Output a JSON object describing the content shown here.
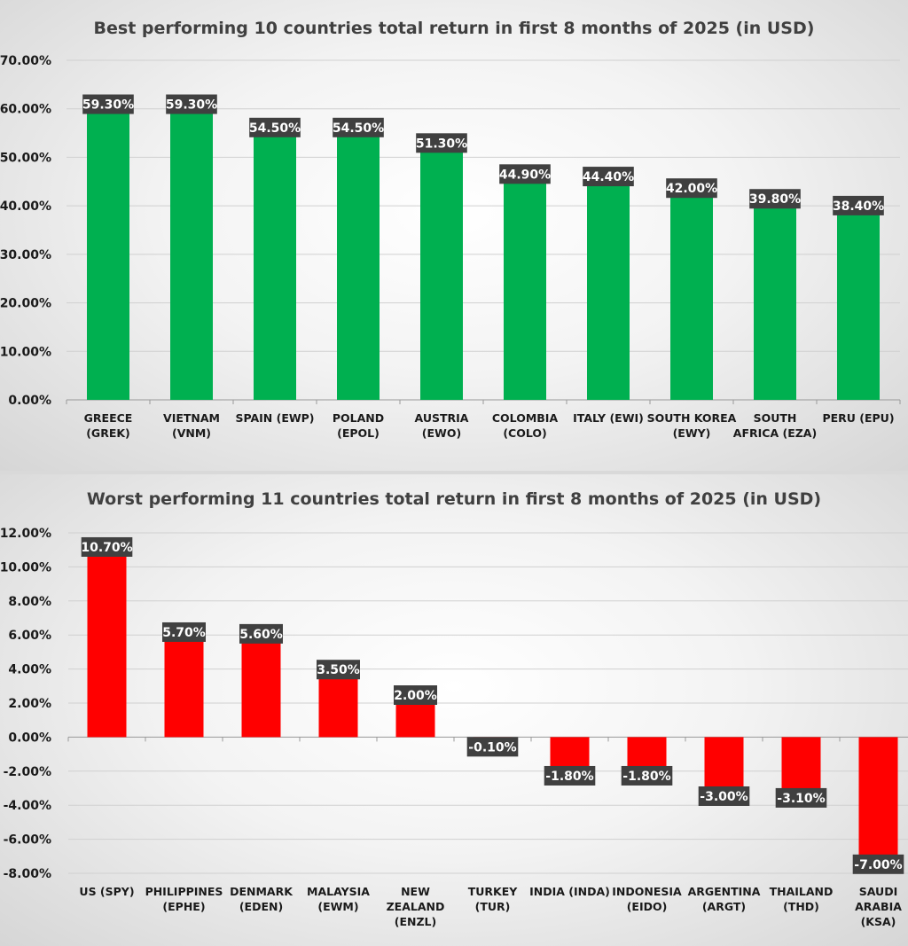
{
  "chart_data": [
    {
      "type": "bar",
      "title": "Best performing 10 countries total return in first 8 months of 2025 (in USD)",
      "xlabel": "",
      "ylabel": "",
      "categories": [
        [
          "GREECE",
          "(GREK)"
        ],
        [
          "VIETNAM",
          "(VNM)"
        ],
        [
          "SPAIN (EWP)"
        ],
        [
          "POLAND",
          "(EPOL)"
        ],
        [
          "AUSTRIA",
          "(EWO)"
        ],
        [
          "COLOMBIA",
          "(COLO)"
        ],
        [
          "ITALY (EWI)"
        ],
        [
          "SOUTH KOREA",
          "(EWY)"
        ],
        [
          "SOUTH",
          "AFRICA (EZA)"
        ],
        [
          "PERU (EPU)"
        ]
      ],
      "values": [
        59.3,
        59.3,
        54.5,
        54.5,
        51.3,
        44.9,
        44.4,
        42.0,
        39.8,
        38.4
      ],
      "data_labels": [
        "59.30%",
        "59.30%",
        "54.50%",
        "54.50%",
        "51.30%",
        "44.90%",
        "44.40%",
        "42.00%",
        "39.80%",
        "38.40%"
      ],
      "yticks": [
        "0.00%",
        "10.00%",
        "20.00%",
        "30.00%",
        "40.00%",
        "50.00%",
        "60.00%",
        "70.00%"
      ],
      "ylim": [
        0,
        70
      ],
      "unit": "%",
      "grid": true,
      "bar_color": "#00b050",
      "label_bg": "#404040"
    },
    {
      "type": "bar",
      "title": "Worst performing 11 countries total return in first 8 months of 2025 (in USD)",
      "xlabel": "",
      "ylabel": "",
      "categories": [
        [
          "US (SPY)"
        ],
        [
          "PHILIPPINES",
          "(EPHE)"
        ],
        [
          "DENMARK",
          "(EDEN)"
        ],
        [
          "MALAYSIA",
          "(EWM)"
        ],
        [
          "NEW",
          "ZEALAND",
          "(ENZL)"
        ],
        [
          "TURKEY",
          "(TUR)"
        ],
        [
          "INDIA (INDA)"
        ],
        [
          "INDONESIA",
          "(EIDO)"
        ],
        [
          "ARGENTINA",
          "(ARGT)"
        ],
        [
          "THAILAND",
          "(THD)"
        ],
        [
          "SAUDI",
          "ARABIA",
          "(KSA)"
        ]
      ],
      "values": [
        10.7,
        5.7,
        5.6,
        3.5,
        2.0,
        -0.1,
        -1.8,
        -1.8,
        -3.0,
        -3.1,
        -7.0
      ],
      "data_labels": [
        "10.70%",
        "5.70%",
        "5.60%",
        "3.50%",
        "2.00%",
        "-0.10%",
        "-1.80%",
        "-1.80%",
        "-3.00%",
        "-3.10%",
        "-7.00%"
      ],
      "yticks": [
        "-8.00%",
        "-6.00%",
        "-4.00%",
        "-2.00%",
        "0.00%",
        "2.00%",
        "4.00%",
        "6.00%",
        "8.00%",
        "10.00%",
        "12.00%"
      ],
      "ylim": [
        -8,
        12
      ],
      "unit": "%",
      "grid": true,
      "bar_color": "#ff0000",
      "label_bg": "#404040"
    }
  ]
}
